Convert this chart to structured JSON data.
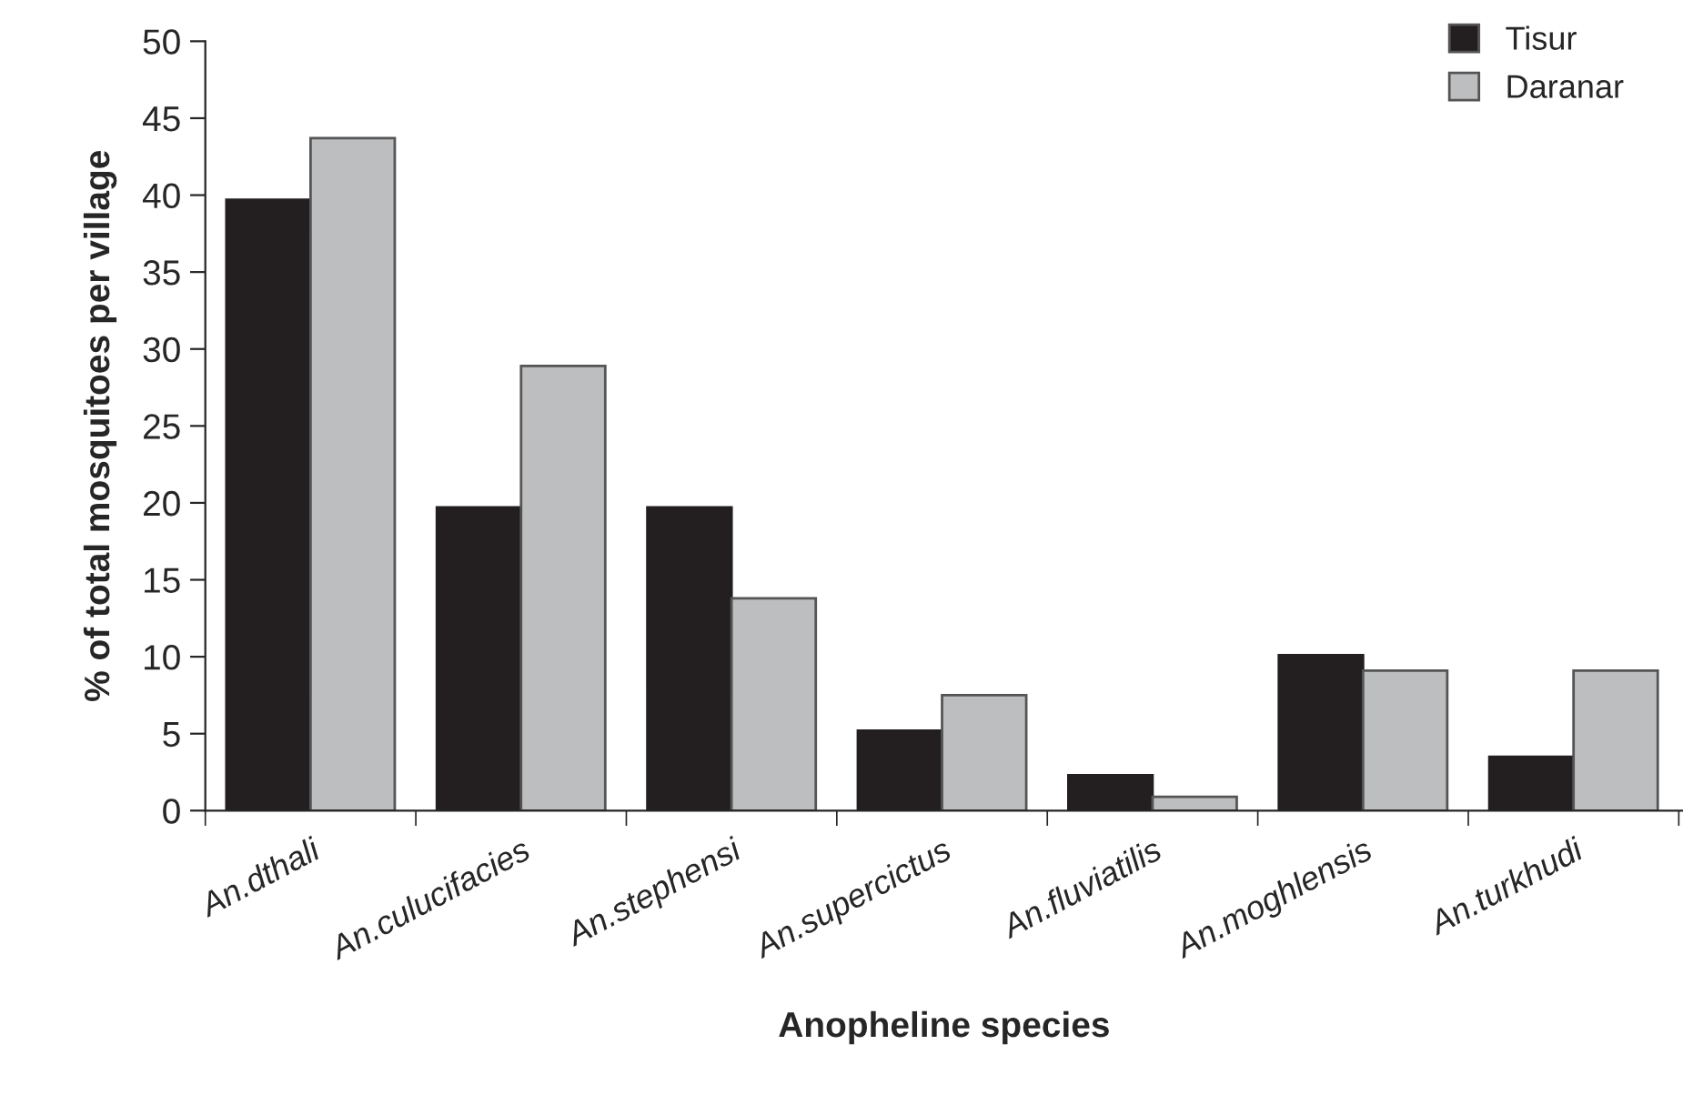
{
  "chart_data": {
    "type": "bar",
    "xlabel": "Anopheline species",
    "ylabel": "% of total mosquitoes per village",
    "categories": [
      "An.dthali",
      "An.culucifacies",
      "An.stephensi",
      "An.supercictus",
      "An.fluviatilis",
      "An.moghlensis",
      "An.turkhudi"
    ],
    "series": [
      {
        "name": "Tisur",
        "color": "#231f20",
        "values": [
          39.7,
          19.7,
          19.7,
          5.2,
          2.3,
          10.1,
          3.5
        ]
      },
      {
        "name": "Daranar",
        "color": "#bcbec0",
        "values": [
          43.7,
          28.9,
          13.8,
          7.5,
          0.9,
          9.1,
          9.1
        ]
      }
    ],
    "ylim": [
      0,
      50
    ],
    "yticks": [
      0,
      5,
      10,
      15,
      20,
      25,
      30,
      35,
      40,
      45,
      50
    ],
    "grid": false,
    "legend": "top right"
  }
}
